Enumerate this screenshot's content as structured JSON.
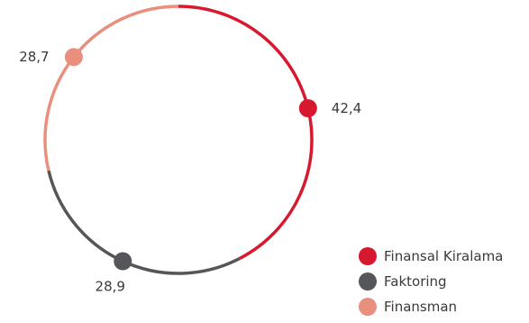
{
  "chart_data": {
    "type": "pie",
    "style": "ring with endpoint markers",
    "series": [
      {
        "name": "Finansal Kiralama",
        "value": 42.4,
        "label": "42,4",
        "color": "#d6192f"
      },
      {
        "name": "Faktoring",
        "value": 28.9,
        "label": "28,9",
        "color": "#555659"
      },
      {
        "name": "Finansman",
        "value": 28.7,
        "label": "28,7",
        "color": "#e8907d"
      }
    ],
    "start_angle_deg": 0,
    "direction": "clockwise",
    "legend_position": "bottom-right"
  }
}
